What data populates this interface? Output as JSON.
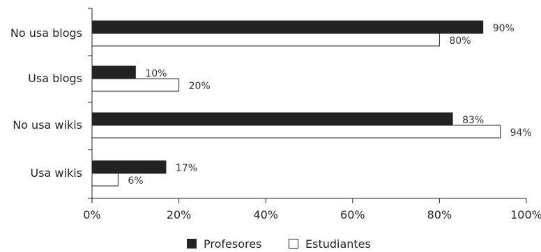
{
  "chart_data": {
    "type": "bar",
    "orientation": "horizontal",
    "categories": [
      "No usa blogs",
      "Usa blogs",
      "No usa wikis",
      "Usa wikis"
    ],
    "series": [
      {
        "name": "Profesores",
        "values": [
          90,
          10,
          83,
          17
        ],
        "labels": [
          "90%",
          "10%",
          "83%",
          "17%"
        ],
        "color": "#222222"
      },
      {
        "name": "Estudiantes",
        "values": [
          80,
          20,
          94,
          6
        ],
        "labels": [
          "80%",
          "20%",
          "94%",
          "6%"
        ],
        "color": "#ffffff"
      }
    ],
    "xlim": [
      0,
      100
    ],
    "x_ticks": [
      0,
      20,
      40,
      60,
      80,
      100
    ],
    "x_tick_labels": [
      "0%",
      "20%",
      "40%",
      "60%",
      "80%",
      "100%"
    ],
    "grid": false,
    "legend_position": "bottom"
  }
}
